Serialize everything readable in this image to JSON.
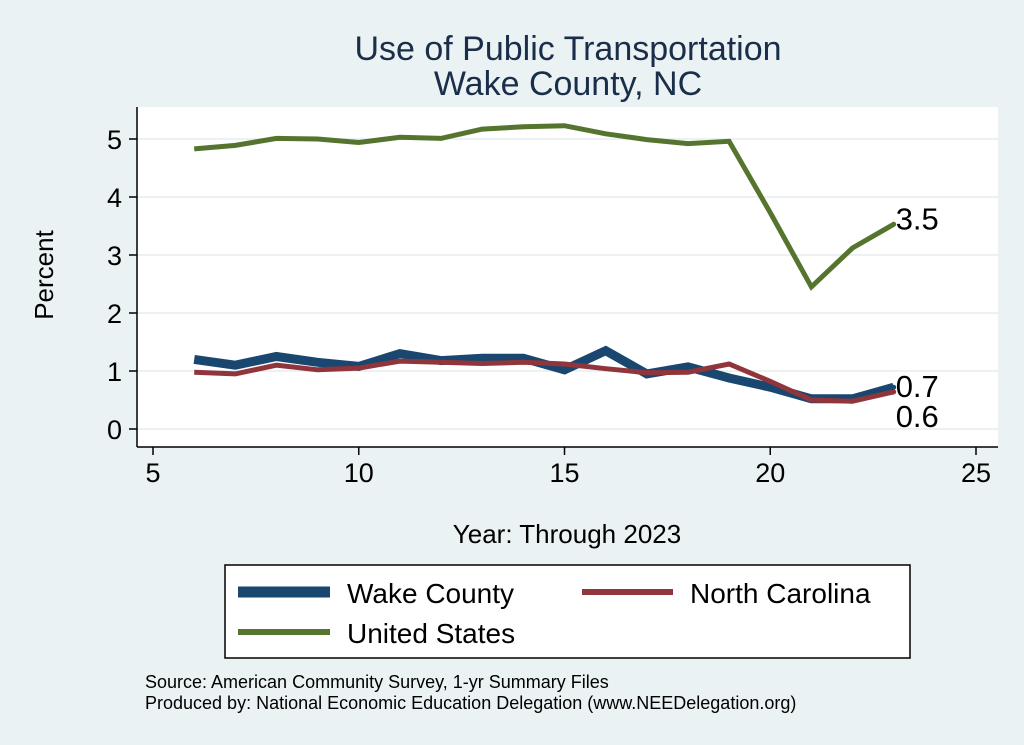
{
  "chart_data": {
    "type": "line",
    "title": [
      "Use of Public Transportation",
      "Wake County, NC"
    ],
    "xlabel": "Year: Through 2023",
    "ylabel": "Percent",
    "xlim": [
      5,
      25
    ],
    "ylim": [
      0,
      5.5
    ],
    "x_ticks": [
      5,
      10,
      15,
      20,
      25
    ],
    "y_ticks": [
      0,
      1,
      2,
      3,
      4,
      5
    ],
    "grid": true,
    "legend_position": "bottom",
    "x": [
      6,
      7,
      8,
      9,
      10,
      11,
      12,
      13,
      14,
      15,
      16,
      17,
      18,
      19,
      20,
      21,
      22,
      23
    ],
    "series": [
      {
        "name": "Wake County",
        "color": "#1a476f",
        "values": [
          1.2,
          1.1,
          1.25,
          1.15,
          1.08,
          1.3,
          1.18,
          1.22,
          1.22,
          1.02,
          1.35,
          0.95,
          1.07,
          0.88,
          0.72,
          0.52,
          0.52,
          0.72
        ],
        "end_label": "0.7"
      },
      {
        "name": "North Carolina",
        "color": "#90353b",
        "values": [
          0.98,
          0.95,
          1.1,
          1.02,
          1.05,
          1.17,
          1.15,
          1.13,
          1.15,
          1.12,
          1.04,
          0.97,
          0.98,
          1.12,
          0.82,
          0.5,
          0.48,
          0.64
        ],
        "end_label": "0.6"
      },
      {
        "name": "United States",
        "color": "#55752f",
        "values": [
          4.83,
          4.89,
          5.01,
          5.0,
          4.94,
          5.03,
          5.01,
          5.17,
          5.21,
          5.23,
          5.09,
          4.99,
          4.92,
          4.96,
          3.73,
          2.45,
          3.12,
          3.53
        ],
        "end_label": "3.5"
      }
    ]
  },
  "footer": {
    "source": "Source: American Community Survey, 1-yr Summary Files",
    "produced_by": "Produced by: National Economic Education Delegation (www.NEEDelegation.org)"
  }
}
